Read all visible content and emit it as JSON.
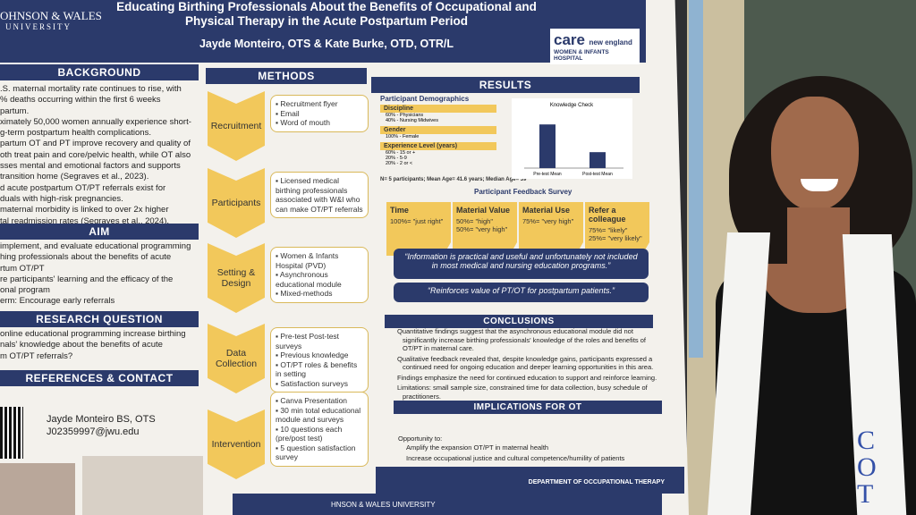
{
  "poster": {
    "logo_left": [
      "OHNSON & WALES",
      "UNIVERSITY"
    ],
    "title": "Educating Birthing Professionals About the Benefits of Occupational and Physical Therapy in the Acute Postpartum Period",
    "authors": "Jayde Monteiro, OTS & Kate Burke, OTD, OTR/L",
    "logo_right": {
      "care": "care",
      "ne": "new england",
      "sub": "WOMEN & INFANTS HOSPITAL"
    },
    "background": {
      "heading": "BACKGROUND",
      "lines": [
        ".S. maternal mortality rate continues to rise, with",
        "% deaths occurring within the first 6 weeks",
        "partum.",
        "ximately 50,000 women annually experience short-",
        "g-term postpartum health complications.",
        "partum OT and PT improve recovery and quality of",
        "oth treat pain and core/pelvic health, while OT also",
        "sses mental and emotional factors and supports",
        "transition home (Segraves et al., 2023).",
        "d acute postpartum OT/PT referrals exist for",
        "duals with high-risk pregnancies.",
        "maternal morbidity is linked to over 2x higher",
        "tal readmission rates (Segraves et al., 2024)."
      ]
    },
    "aim": {
      "heading": "AIM",
      "lines": [
        "implement, and evaluate educational programming",
        "hing professionals about the benefits of acute",
        "rtum OT/PT",
        "re participants' learning and the efficacy of the",
        "onal program",
        "erm: Encourage early referrals"
      ]
    },
    "research_question": {
      "heading": "RESEARCH QUESTION",
      "lines": [
        "online educational programming increase birthing",
        "nals' knowledge about the benefits of acute",
        "m OT/PT referrals?"
      ]
    },
    "references": {
      "heading": "REFERENCES & CONTACT",
      "lines": [
        "Jayde Monteiro BS, OTS",
        "J02359997@jwu.edu"
      ]
    },
    "methods": {
      "heading": "METHODS",
      "steps": [
        {
          "label": "Recruitment",
          "items": [
            "Recruitment flyer",
            "Email",
            "Word of mouth"
          ]
        },
        {
          "label": "Participants",
          "items": [
            "Licensed medical birthing professionals associated with W&I who can make OT/PT referrals"
          ]
        },
        {
          "label": "Setting & Design",
          "items": [
            "Women & Infants Hospital (PVD)",
            "Asynchronous educational module",
            "Mixed-methods"
          ]
        },
        {
          "label": "Data Collection",
          "items": [
            "Pre-test Post-test surveys",
            "Previous knowledge",
            "OT/PT roles & benefits in setting",
            "Satisfaction surveys"
          ]
        },
        {
          "label": "Intervention",
          "items": [
            "Canva Presentation",
            "30 min total educational module and surveys",
            "10 questions each (pre/post test)",
            "5 question satisfaction survey"
          ]
        }
      ]
    },
    "results": {
      "heading": "RESULTS",
      "demographics": {
        "heading": "Participant Demographics",
        "groups": [
          {
            "label": "Discipline",
            "lines": [
              "60% - Physicians",
              "40% - Nursing Midwives"
            ]
          },
          {
            "label": "Gender",
            "lines": [
              "100% - Female"
            ]
          },
          {
            "label": "Experience Level (years)",
            "lines": [
              "60% - 15 or +",
              "20% - 5-9",
              "20% - 2 or <"
            ]
          }
        ],
        "summary": "N= 5 participants; Mean Age= 41.6 years; Median Age= 39"
      },
      "knowledge_check": {
        "title": "Knowledge Check",
        "categories": [
          "Pre-test Mean",
          "Post-test Mean"
        ],
        "values": [
          63,
          23
        ],
        "ylim": [
          0,
          80
        ],
        "color": "#2b3a6b"
      },
      "feedback": {
        "heading": "Participant Feedback Survey",
        "boxes": [
          {
            "label": "Time",
            "lines": [
              "100%= \"just right\""
            ]
          },
          {
            "label": "Material Value",
            "lines": [
              "50%= \"high\"",
              "50%= \"very high\""
            ]
          },
          {
            "label": "Material Use",
            "lines": [
              "75%= \"very high\""
            ]
          },
          {
            "label": "Refer a colleague",
            "lines": [
              "75%= \"likely\"",
              "25%= \"very likely\""
            ]
          }
        ]
      },
      "quotes": [
        "“Information is practical and useful and unfortunately not included in most medical and nursing education programs.”",
        "“Reinforces value of PT/OT for postpartum patients.”"
      ]
    },
    "conclusions": {
      "heading": "CONCLUSIONS",
      "lines": [
        "Quantitative findings suggest that the asynchronous educational module did not significantly increase birthing professionals' knowledge of the roles and benefits of OT/PT in maternal care.",
        "Qualitative feedback revealed that, despite knowledge gains, participants expressed a continued need for ongoing education and deeper learning opportunities in this area.",
        "Findings emphasize the need for continued education to support and reinforce learning.",
        "Limitations: small sample size, constrained time for data collection, busy schedule of practitioners."
      ]
    },
    "implications": {
      "heading": "IMPLICATIONS FOR OT",
      "intro": "Opportunity to:",
      "lines": [
        "Amplify the expansion OT/PT in maternal health",
        "Increase occupational justice and cultural competence/humility of patients"
      ]
    },
    "footer": "DEPARTMENT OF OCCUPATIONAL THERAPY",
    "bottom_logo": "HNSON & WALES UNIVERSITY"
  },
  "stole_text": "COT"
}
